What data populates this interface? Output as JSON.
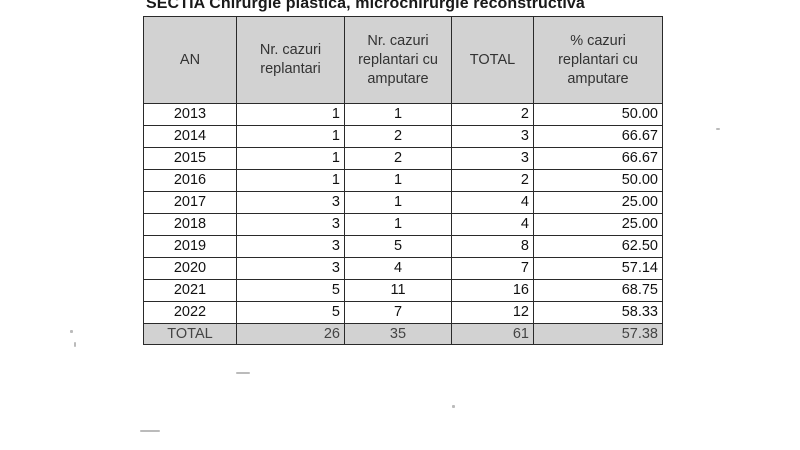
{
  "title": "SECTIA Chirurgie plastica, microchirurgie reconstructiva",
  "table": {
    "headers": [
      "AN",
      "Nr. cazuri replantari",
      "Nr. cazuri replantari cu amputare",
      "TOTAL",
      "% cazuri replantari cu amputare"
    ],
    "rows": [
      [
        "2013",
        "1",
        "1",
        "2",
        "50.00"
      ],
      [
        "2014",
        "1",
        "2",
        "3",
        "66.67"
      ],
      [
        "2015",
        "1",
        "2",
        "3",
        "66.67"
      ],
      [
        "2016",
        "1",
        "1",
        "2",
        "50.00"
      ],
      [
        "2017",
        "3",
        "1",
        "4",
        "25.00"
      ],
      [
        "2018",
        "3",
        "1",
        "4",
        "25.00"
      ],
      [
        "2019",
        "3",
        "5",
        "8",
        "62.50"
      ],
      [
        "2020",
        "3",
        "4",
        "7",
        "57.14"
      ],
      [
        "2021",
        "5",
        "11",
        "16",
        "68.75"
      ],
      [
        "2022",
        "5",
        "7",
        "12",
        "58.33"
      ]
    ],
    "total_row": [
      "TOTAL",
      "26",
      "35",
      "61",
      "57.38"
    ]
  }
}
